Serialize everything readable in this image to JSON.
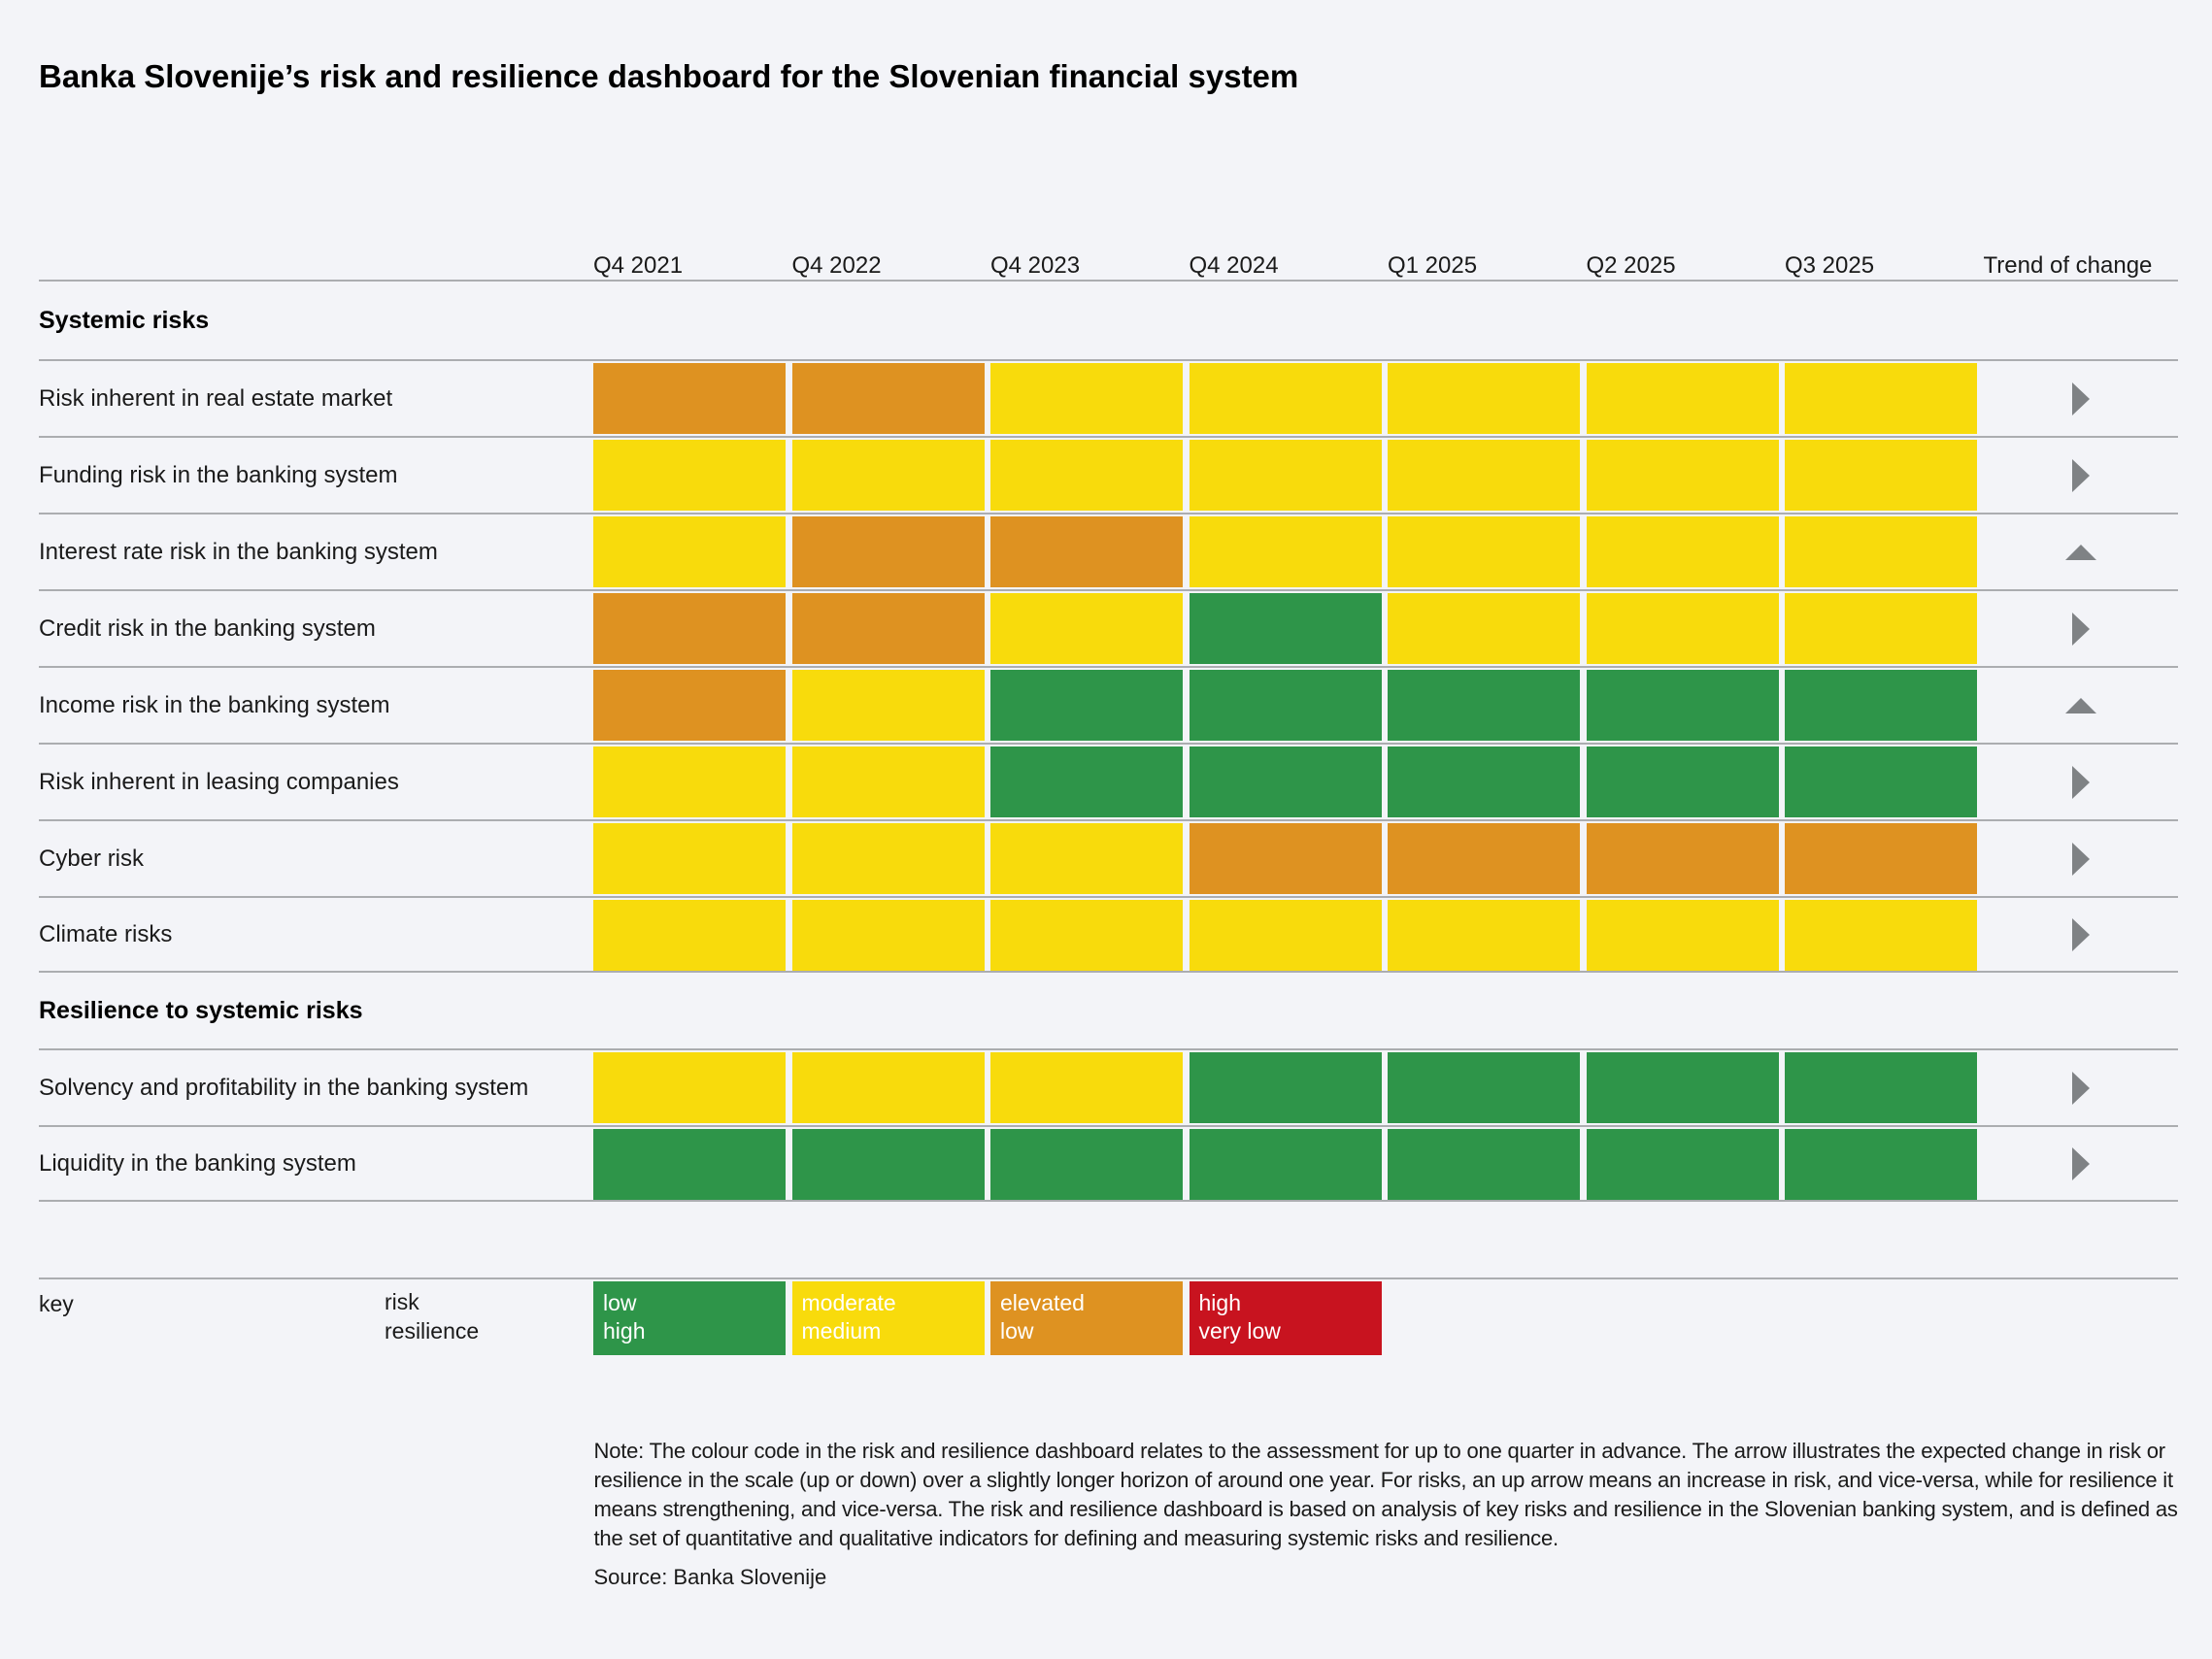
{
  "title": "Banka Slovenije’s risk and resilience dashboard for the Slovenian financial system",
  "table": {
    "quarters": [
      "Q4 2021",
      "Q4 2022",
      "Q4 2023",
      "Q4 2024",
      "Q1 2025",
      "Q2 2025",
      "Q3 2025"
    ],
    "trend_header": "Trend of change",
    "sections": [
      {
        "label": "Systemic risks",
        "scale": "risk",
        "rows": [
          {
            "label": "Risk inherent in real estate market",
            "cells": [
              "elevated",
              "elevated",
              "moderate",
              "moderate",
              "moderate",
              "moderate",
              "moderate"
            ],
            "trend": "right"
          },
          {
            "label": "Funding risk in the banking system",
            "cells": [
              "moderate",
              "moderate",
              "moderate",
              "moderate",
              "moderate",
              "moderate",
              "moderate"
            ],
            "trend": "right"
          },
          {
            "label": "Interest rate risk in the banking system",
            "cells": [
              "moderate",
              "elevated",
              "elevated",
              "moderate",
              "moderate",
              "moderate",
              "moderate"
            ],
            "trend": "up"
          },
          {
            "label": "Credit risk in the banking system",
            "cells": [
              "elevated",
              "elevated",
              "moderate",
              "low",
              "moderate",
              "moderate",
              "moderate"
            ],
            "trend": "right"
          },
          {
            "label": "Income risk in the banking system",
            "cells": [
              "elevated",
              "moderate",
              "low",
              "low",
              "low",
              "low",
              "low"
            ],
            "trend": "up"
          },
          {
            "label": "Risk inherent in leasing companies",
            "cells": [
              "moderate",
              "moderate",
              "low",
              "low",
              "low",
              "low",
              "low"
            ],
            "trend": "right"
          },
          {
            "label": "Cyber risk",
            "cells": [
              "moderate",
              "moderate",
              "moderate",
              "elevated",
              "elevated",
              "elevated",
              "elevated"
            ],
            "trend": "right"
          },
          {
            "label": "Climate risks",
            "cells": [
              "moderate",
              "moderate",
              "moderate",
              "moderate",
              "moderate",
              "moderate",
              "moderate"
            ],
            "trend": "right"
          }
        ]
      },
      {
        "label": "Resilience to systemic risks",
        "scale": "resilience",
        "rows": [
          {
            "label": "Solvency and profitability in the banking system",
            "cells": [
              "medium",
              "medium",
              "medium",
              "high",
              "high",
              "high",
              "high"
            ],
            "trend": "right"
          },
          {
            "label": "Liquidity in the banking system",
            "cells": [
              "high",
              "high",
              "high",
              "high",
              "high",
              "high",
              "high"
            ],
            "trend": "right"
          }
        ]
      }
    ]
  },
  "key": {
    "label": "key",
    "scale_risk_label": "risk",
    "scale_resilience_label": "resilience",
    "items": [
      {
        "risk": "low",
        "resilience": "high",
        "color": "#2E9549"
      },
      {
        "risk": "moderate",
        "resilience": "medium",
        "color": "#F8DB0C"
      },
      {
        "risk": "elevated",
        "resilience": "low",
        "color": "#DE9221"
      },
      {
        "risk": "high",
        "resilience": "very low",
        "color": "#C8131F"
      }
    ]
  },
  "palette": {
    "risk": {
      "low": "#2E9549",
      "moderate": "#F8DB0C",
      "elevated": "#DE9221",
      "high": "#C8131F"
    },
    "resilience": {
      "high": "#2E9549",
      "medium": "#F8DB0C",
      "low": "#DE9221",
      "very_low": "#C8131F"
    },
    "arrow": "#7F8285",
    "line": "#ABADB0",
    "background": "#F3F4F8"
  },
  "note": {
    "text": "Note: The colour code in the risk and resilience dashboard relates to the assessment for up to one quarter in advance. The arrow illustrates the expected change in risk or resilience in the scale (up or down) over a slightly longer horizon of around one year. For risks, an up arrow means an increase in risk, and vice-versa, while for resilience it means strengthening, and vice-versa. The risk and resilience dashboard is based on analysis of key risks and resilience in the Slovenian banking system, and is defined as the set of quantitative and qualitative indicators for defining and measuring systemic risks and resilience.",
    "source": "Source: Banka Slovenije"
  },
  "chart_data": {
    "type": "heatmap",
    "title": "Banka Slovenije’s risk and resilience dashboard for the Slovenian financial system",
    "x_categories": [
      "Q4 2021",
      "Q4 2022",
      "Q4 2023",
      "Q4 2024",
      "Q1 2025",
      "Q2 2025",
      "Q3 2025"
    ],
    "extra_column": "Trend of change",
    "legend": [
      {
        "risk": "low",
        "resilience": "high",
        "color": "#2E9549"
      },
      {
        "risk": "moderate",
        "resilience": "medium",
        "color": "#F8DB0C"
      },
      {
        "risk": "elevated",
        "resilience": "low",
        "color": "#DE9221"
      },
      {
        "risk": "high",
        "resilience": "very low",
        "color": "#C8131F"
      }
    ],
    "rows": [
      {
        "section": "Systemic risks",
        "name": "Risk inherent in real estate market",
        "values": [
          "elevated",
          "elevated",
          "moderate",
          "moderate",
          "moderate",
          "moderate",
          "moderate"
        ],
        "trend": "right"
      },
      {
        "section": "Systemic risks",
        "name": "Funding risk in the banking system",
        "values": [
          "moderate",
          "moderate",
          "moderate",
          "moderate",
          "moderate",
          "moderate",
          "moderate"
        ],
        "trend": "right"
      },
      {
        "section": "Systemic risks",
        "name": "Interest rate risk in the banking system",
        "values": [
          "moderate",
          "elevated",
          "elevated",
          "moderate",
          "moderate",
          "moderate",
          "moderate"
        ],
        "trend": "up"
      },
      {
        "section": "Systemic risks",
        "name": "Credit risk in the banking system",
        "values": [
          "elevated",
          "elevated",
          "moderate",
          "low",
          "moderate",
          "moderate",
          "moderate"
        ],
        "trend": "right"
      },
      {
        "section": "Systemic risks",
        "name": "Income risk in the banking system",
        "values": [
          "elevated",
          "moderate",
          "low",
          "low",
          "low",
          "low",
          "low"
        ],
        "trend": "up"
      },
      {
        "section": "Systemic risks",
        "name": "Risk inherent in leasing companies",
        "values": [
          "moderate",
          "moderate",
          "low",
          "low",
          "low",
          "low",
          "low"
        ],
        "trend": "right"
      },
      {
        "section": "Systemic risks",
        "name": "Cyber risk",
        "values": [
          "moderate",
          "moderate",
          "moderate",
          "elevated",
          "elevated",
          "elevated",
          "elevated"
        ],
        "trend": "right"
      },
      {
        "section": "Systemic risks",
        "name": "Climate risks",
        "values": [
          "moderate",
          "moderate",
          "moderate",
          "moderate",
          "moderate",
          "moderate",
          "moderate"
        ],
        "trend": "right"
      },
      {
        "section": "Resilience to systemic risks",
        "name": "Solvency and profitability in the banking system",
        "values": [
          "medium",
          "medium",
          "medium",
          "high",
          "high",
          "high",
          "high"
        ],
        "trend": "right"
      },
      {
        "section": "Resilience to systemic risks",
        "name": "Liquidity in the banking system",
        "values": [
          "high",
          "high",
          "high",
          "high",
          "high",
          "high",
          "high"
        ],
        "trend": "right"
      }
    ]
  }
}
